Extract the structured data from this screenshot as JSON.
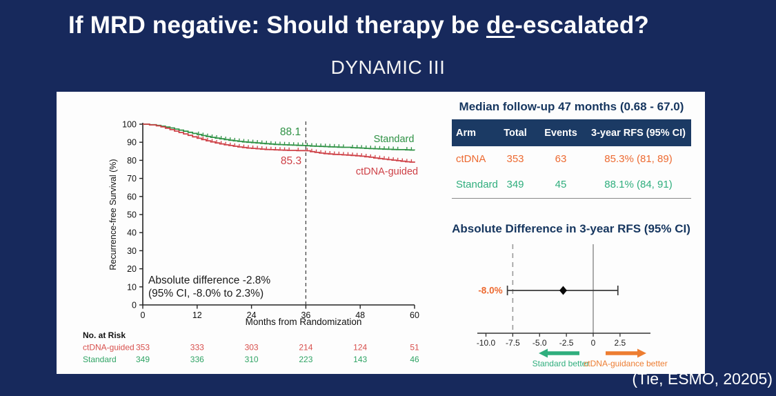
{
  "slide": {
    "title_prefix": "If MRD negative: Should therapy be ",
    "title_underline": "de",
    "title_suffix": "-escalated?",
    "subtitle": "DYNAMIC III",
    "citation": "(Tie, ESMO, 20205)"
  },
  "colors": {
    "page_bg": "#17295c",
    "card_bg": "#fdfdfd",
    "header_bg": "#1b3a64",
    "navy_text": "#16365f",
    "orange": "#ed6a31",
    "teal_green": "#2fae7d",
    "km_green": "#2e9144",
    "km_red": "#ce4046",
    "risk_red": "#d8504d",
    "risk_green": "#30a465",
    "axis": "#222222",
    "gray": "#666666"
  },
  "followup_panel": {
    "title": "Median follow-up 47 months (0.68 - 67.0)",
    "table": {
      "headers": [
        "Arm",
        "Total",
        "Events",
        "3-year RFS (95% CI)"
      ],
      "rows": [
        {
          "arm": "ctDNA",
          "total": "353",
          "events": "63",
          "rfs": "85.3% (81, 89)",
          "color": "#ed6a31"
        },
        {
          "arm": "Standard",
          "total": "349",
          "events": "45",
          "rfs": "88.1% (84, 91)",
          "color": "#2fae7d"
        }
      ]
    }
  },
  "chart_data": [
    {
      "type": "line",
      "subtype": "kaplan-meier",
      "title": "",
      "xlabel": "Months from Randomization",
      "ylabel": "Recurrence-free Survival (%)",
      "xlim": [
        0,
        60
      ],
      "ylim": [
        0,
        100
      ],
      "xticks": [
        0,
        12,
        24,
        36,
        48,
        60
      ],
      "yticks": [
        0,
        10,
        20,
        30,
        40,
        50,
        60,
        70,
        80,
        90,
        100
      ],
      "grid": false,
      "reference_line_x": 36,
      "curve_annotations": [
        {
          "text": "88.1",
          "color": "#2e9144",
          "month": 32,
          "pct_label_y": 94
        },
        {
          "text": "85.3",
          "color": "#ce4046",
          "month": 32,
          "pct_label_y": 78
        }
      ],
      "note_lines": [
        "Absolute difference -2.8%",
        "(95% CI, -8.0% to 2.3%)"
      ],
      "series": [
        {
          "name": "Standard",
          "color": "#2e9144",
          "value_at_36mo": 88.1,
          "points": [
            [
              0,
              100
            ],
            [
              1.5,
              99.7
            ],
            [
              3,
              99.3
            ],
            [
              4,
              98.9
            ],
            [
              5,
              98.4
            ],
            [
              6,
              97.9
            ],
            [
              7,
              97.3
            ],
            [
              8,
              96.7
            ],
            [
              9,
              96.1
            ],
            [
              10,
              95.5
            ],
            [
              11,
              94.9
            ],
            [
              12,
              94.3
            ],
            [
              13,
              93.7
            ],
            [
              14,
              93.2
            ],
            [
              15,
              92.7
            ],
            [
              16,
              92.3
            ],
            [
              17,
              91.9
            ],
            [
              18,
              91.5
            ],
            [
              19,
              91.1
            ],
            [
              20,
              90.8
            ],
            [
              21,
              90.5
            ],
            [
              22,
              90.2
            ],
            [
              23,
              90.0
            ],
            [
              24,
              89.8
            ],
            [
              25,
              89.6
            ],
            [
              26,
              89.4
            ],
            [
              27,
              89.2
            ],
            [
              28,
              89.0
            ],
            [
              29,
              88.8
            ],
            [
              30,
              88.7
            ],
            [
              31,
              88.6
            ],
            [
              32,
              88.5
            ],
            [
              33,
              88.4
            ],
            [
              34,
              88.3
            ],
            [
              35,
              88.2
            ],
            [
              36,
              88.1
            ],
            [
              37,
              87.9
            ],
            [
              38,
              87.8
            ],
            [
              39,
              87.7
            ],
            [
              40,
              87.6
            ],
            [
              41,
              87.5
            ],
            [
              42,
              87.4
            ],
            [
              43,
              87.3
            ],
            [
              44,
              87.2
            ],
            [
              46,
              87.0
            ],
            [
              47,
              86.9
            ],
            [
              48,
              86.8
            ],
            [
              49,
              86.6
            ],
            [
              50,
              86.5
            ],
            [
              51,
              86.4
            ],
            [
              52,
              86.3
            ],
            [
              53,
              86.2
            ],
            [
              54,
              86.1
            ],
            [
              55,
              86.0
            ],
            [
              56,
              85.9
            ],
            [
              58,
              85.8
            ],
            [
              59,
              85.7
            ],
            [
              60,
              85.6
            ]
          ]
        },
        {
          "name": "ctDNA-guided",
          "color": "#ce4046",
          "value_at_36mo": 85.3,
          "points": [
            [
              0,
              100
            ],
            [
              1.5,
              99.6
            ],
            [
              3,
              99.1
            ],
            [
              4,
              98.5
            ],
            [
              5,
              97.8
            ],
            [
              6,
              97.0
            ],
            [
              7,
              96.2
            ],
            [
              8,
              95.4
            ],
            [
              9,
              94.6
            ],
            [
              10,
              93.8
            ],
            [
              11,
              93.0
            ],
            [
              12,
              92.2
            ],
            [
              13,
              91.5
            ],
            [
              14,
              90.8
            ],
            [
              15,
              90.2
            ],
            [
              16,
              89.6
            ],
            [
              17,
              89.1
            ],
            [
              18,
              88.6
            ],
            [
              19,
              88.2
            ],
            [
              20,
              87.8
            ],
            [
              21,
              87.4
            ],
            [
              22,
              87.1
            ],
            [
              23,
              86.8
            ],
            [
              24,
              86.6
            ],
            [
              25,
              86.4
            ],
            [
              26,
              86.2
            ],
            [
              27,
              86.0
            ],
            [
              28,
              85.9
            ],
            [
              29,
              85.8
            ],
            [
              30,
              85.7
            ],
            [
              31,
              85.6
            ],
            [
              32,
              85.5
            ],
            [
              34,
              85.4
            ],
            [
              36,
              85.3
            ],
            [
              37,
              84.8
            ],
            [
              38,
              84.4
            ],
            [
              39,
              84.0
            ],
            [
              40,
              83.7
            ],
            [
              41,
              83.5
            ],
            [
              42,
              83.3
            ],
            [
              43,
              83.2
            ],
            [
              44,
              83.0
            ],
            [
              45,
              82.9
            ],
            [
              46,
              82.7
            ],
            [
              47,
              82.5
            ],
            [
              48,
              82.3
            ],
            [
              49,
              82.0
            ],
            [
              50,
              81.7
            ],
            [
              51,
              81.3
            ],
            [
              52,
              81.0
            ],
            [
              53,
              80.7
            ],
            [
              54,
              80.4
            ],
            [
              55,
              80.1
            ],
            [
              56,
              79.8
            ],
            [
              57,
              79.5
            ],
            [
              58,
              79.2
            ],
            [
              59,
              79.0
            ],
            [
              60,
              78.7
            ]
          ]
        }
      ],
      "risk_table": {
        "label": "No. at Risk",
        "months": [
          0,
          12,
          24,
          36,
          48,
          60
        ],
        "rows": [
          {
            "name": "ctDNA-guided",
            "color": "#d8504d",
            "values": [
              353,
              333,
              303,
              214,
              124,
              51
            ]
          },
          {
            "name": "Standard",
            "color": "#30a465",
            "values": [
              349,
              336,
              310,
              223,
              143,
              46
            ]
          }
        ]
      }
    },
    {
      "type": "scatter",
      "subtype": "forest",
      "title": "Absolute Difference in 3-year RFS (95% CI)",
      "estimate": -2.8,
      "ci_low": -8.0,
      "ci_high": 2.3,
      "estimate_label": "-8.0%",
      "xlim": [
        -10.8,
        4.3
      ],
      "xtick_values": [
        -10.0,
        -7.5,
        -5.0,
        -2.5,
        0,
        2.5
      ],
      "xtick_labels": [
        "-10.0",
        "-7.5",
        "-5.0",
        "-2.5",
        "0",
        "2.5"
      ],
      "dashed_reference_x": -7.5,
      "zero_line_x": 0,
      "arrows": [
        {
          "text": "Standard better",
          "direction": "left",
          "color": "#2fae7d"
        },
        {
          "text": "ctDNA-guidance better",
          "direction": "right",
          "color": "#ed7d31"
        }
      ]
    }
  ]
}
